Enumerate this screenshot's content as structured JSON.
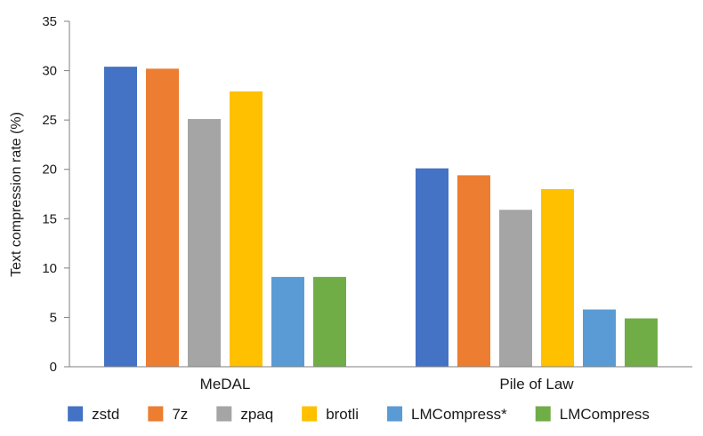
{
  "chart_data": {
    "type": "bar",
    "categories": [
      "MeDAL",
      "Pile of Law"
    ],
    "series": [
      {
        "name": "zstd",
        "color": "#4472C4",
        "values": [
          30.4,
          20.1
        ]
      },
      {
        "name": "7z",
        "color": "#ED7D31",
        "values": [
          30.2,
          19.4
        ]
      },
      {
        "name": "zpaq",
        "color": "#A5A5A5",
        "values": [
          25.1,
          15.9
        ]
      },
      {
        "name": "brotli",
        "color": "#FFC000",
        "values": [
          27.9,
          18.0
        ]
      },
      {
        "name": "LMCompress*",
        "color": "#5B9BD5",
        "values": [
          9.1,
          5.8
        ]
      },
      {
        "name": "LMCompress",
        "color": "#70AD47",
        "values": [
          9.1,
          4.9
        ]
      }
    ],
    "yticks": [
      "0",
      "5",
      "10",
      "15",
      "20",
      "25",
      "30",
      "35"
    ],
    "ylabel": "Text compression rate (%)",
    "xlabel": "",
    "ylim": [
      0,
      35
    ],
    "grid": false,
    "legend_position": "bottom"
  }
}
